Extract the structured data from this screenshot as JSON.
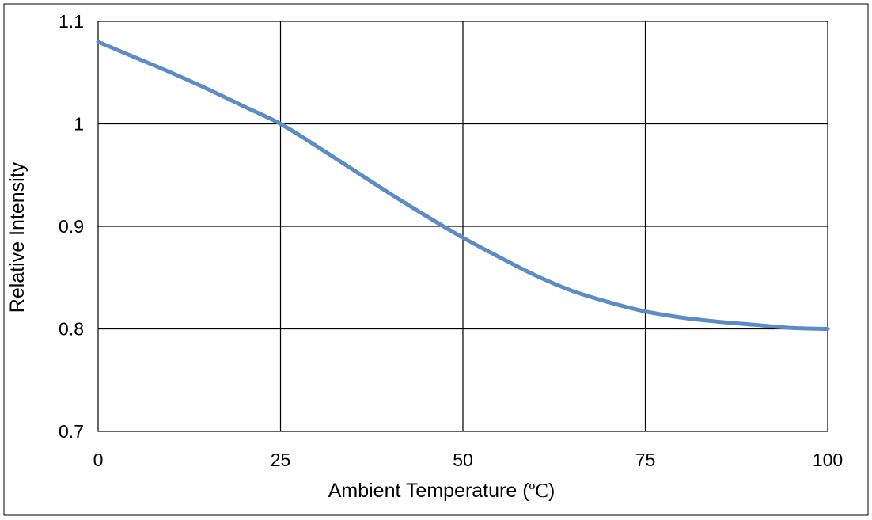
{
  "chart_data": {
    "type": "line",
    "xlabel": "Ambient Temperature (",
    "xlabel_unit": "ºC",
    "xlabel_close": ")",
    "ylabel": "Relative Intensity",
    "xlim": [
      0,
      100
    ],
    "ylim": [
      0.7,
      1.1
    ],
    "x_ticks": [
      "0",
      "25",
      "50",
      "75",
      "100"
    ],
    "y_ticks": [
      "0.7",
      "0.8",
      "0.9",
      "1",
      "1.1"
    ],
    "grid": true,
    "series": [
      {
        "color": "#5b8cc6",
        "x": [
          0,
          5,
          10,
          15,
          20,
          25,
          30,
          35,
          40,
          45,
          50,
          55,
          60,
          65,
          70,
          75,
          80,
          85,
          90,
          95,
          100
        ],
        "y": [
          1.08,
          1.065,
          1.05,
          1.034,
          1.017,
          1.0,
          0.978,
          0.955,
          0.932,
          0.91,
          0.889,
          0.87,
          0.852,
          0.837,
          0.826,
          0.817,
          0.811,
          0.807,
          0.804,
          0.801,
          0.8
        ]
      }
    ]
  }
}
